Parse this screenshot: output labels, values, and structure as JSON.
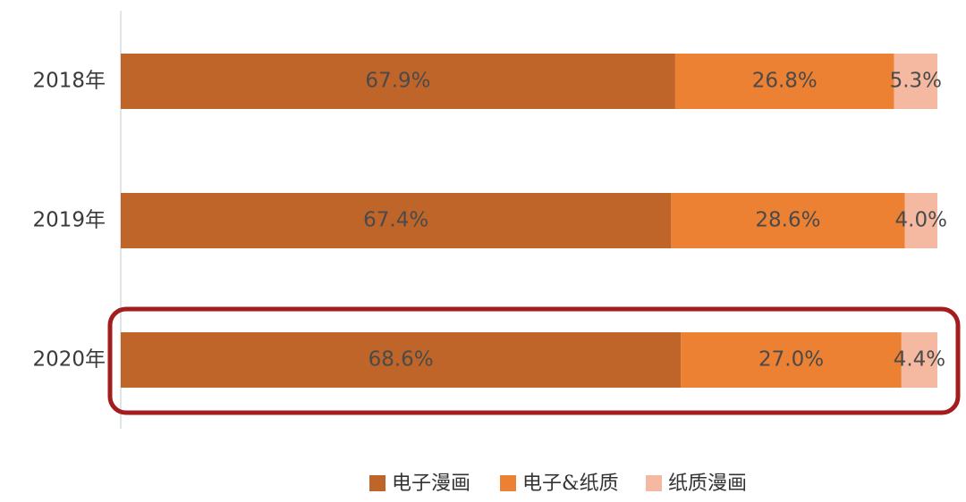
{
  "chart_data": {
    "type": "stacked-bar-horizontal",
    "categories": [
      "2018年",
      "2019年",
      "2020年"
    ],
    "series": [
      {
        "name": "电子漫画",
        "color": "#c0652a",
        "values": [
          67.9,
          67.4,
          68.6
        ],
        "value_labels": [
          "67.9%",
          "67.4%",
          "68.6%"
        ]
      },
      {
        "name": "电子&纸质",
        "color": "#ec8033",
        "values": [
          26.8,
          28.6,
          27.0
        ],
        "value_labels": [
          "26.8%",
          "28.6%",
          "27.0%"
        ]
      },
      {
        "name": "纸质漫画",
        "color": "#f4b9a0",
        "values": [
          5.3,
          4.0,
          4.4
        ],
        "value_labels": [
          "5.3%",
          "4.0%",
          "4.4%"
        ]
      }
    ],
    "legend": "bottom"
  }
}
